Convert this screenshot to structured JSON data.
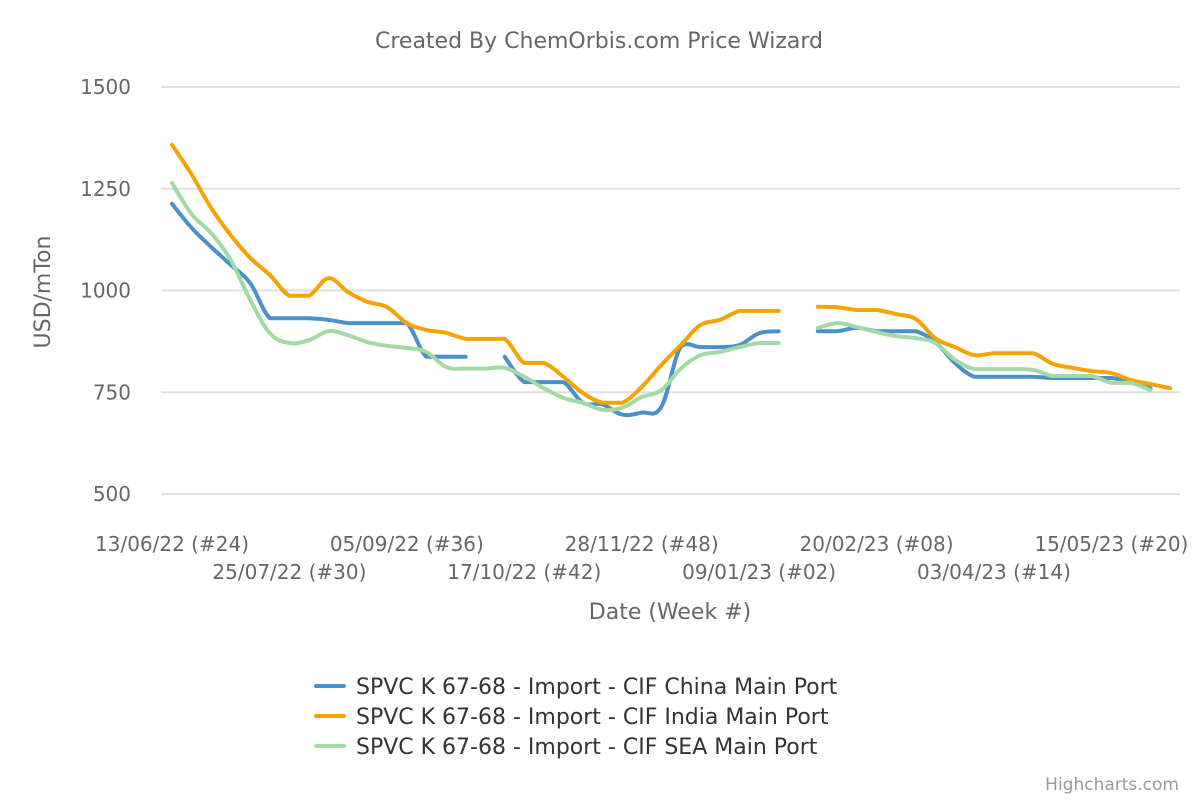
{
  "chart_data": {
    "type": "line",
    "title": "Created By ChemOrbis.com Price Wizard",
    "xlabel": "Date (Week #)",
    "ylabel": "USD/mTon",
    "ylim": [
      500,
      1500
    ],
    "yticks": [
      500,
      750,
      1000,
      1250,
      1500
    ],
    "grid": true,
    "legend_position": "bottom-center",
    "x_count": 52,
    "xticks": [
      {
        "index": 0,
        "label": "13/06/22 (#24)"
      },
      {
        "index": 6,
        "label": "25/07/22 (#30)"
      },
      {
        "index": 12,
        "label": "05/09/22 (#36)"
      },
      {
        "index": 18,
        "label": "17/10/22 (#42)"
      },
      {
        "index": 24,
        "label": "28/11/22 (#48)"
      },
      {
        "index": 30,
        "label": "09/01/23 (#02)"
      },
      {
        "index": 36,
        "label": "20/02/23 (#08)"
      },
      {
        "index": 42,
        "label": "03/04/23 (#14)"
      },
      {
        "index": 48,
        "label": "15/05/23 (#20)"
      }
    ],
    "series": [
      {
        "name": "SPVC K 67-68 - Import - CIF China Main Port",
        "color": "#4a90c9",
        "values": [
          1213,
          1154,
          1107,
          1063,
          1018,
          932,
          932,
          932,
          928,
          920,
          920,
          920,
          920,
          837,
          837,
          837,
          null,
          837,
          775,
          775,
          775,
          724,
          720,
          695,
          700,
          714,
          862,
          861,
          861,
          866,
          895,
          900,
          null,
          900,
          900,
          908,
          900,
          900,
          900,
          874,
          822,
          788,
          788,
          788,
          788,
          785,
          785,
          785,
          785,
          775,
          760,
          null
        ]
      },
      {
        "name": "SPVC K 67-68 - Import - CIF India Main Port",
        "color": "#f5a300",
        "values": [
          1358,
          1285,
          1203,
          1136,
          1080,
          1038,
          987,
          987,
          1030,
          996,
          972,
          959,
          920,
          903,
          896,
          881,
          881,
          881,
          822,
          822,
          788,
          748,
          724,
          724,
          763,
          817,
          866,
          915,
          928,
          950,
          950,
          950,
          null,
          960,
          959,
          952,
          952,
          942,
          930,
          883,
          861,
          841,
          846,
          846,
          846,
          820,
          810,
          802,
          797,
          780,
          770,
          760
        ]
      },
      {
        "name": "SPVC K 67-68 - Import - CIF SEA Main Port",
        "color": "#a3d9a5",
        "values": [
          1264,
          1188,
          1141,
          1075,
          977,
          895,
          871,
          878,
          900,
          890,
          873,
          864,
          859,
          849,
          812,
          808,
          808,
          810,
          788,
          760,
          736,
          724,
          707,
          712,
          738,
          755,
          808,
          841,
          849,
          861,
          871,
          871,
          null,
          908,
          920,
          910,
          898,
          888,
          883,
          871,
          830,
          807,
          807,
          807,
          805,
          790,
          790,
          790,
          773,
          773,
          755,
          null
        ]
      }
    ],
    "credits": "Highcharts.com"
  }
}
